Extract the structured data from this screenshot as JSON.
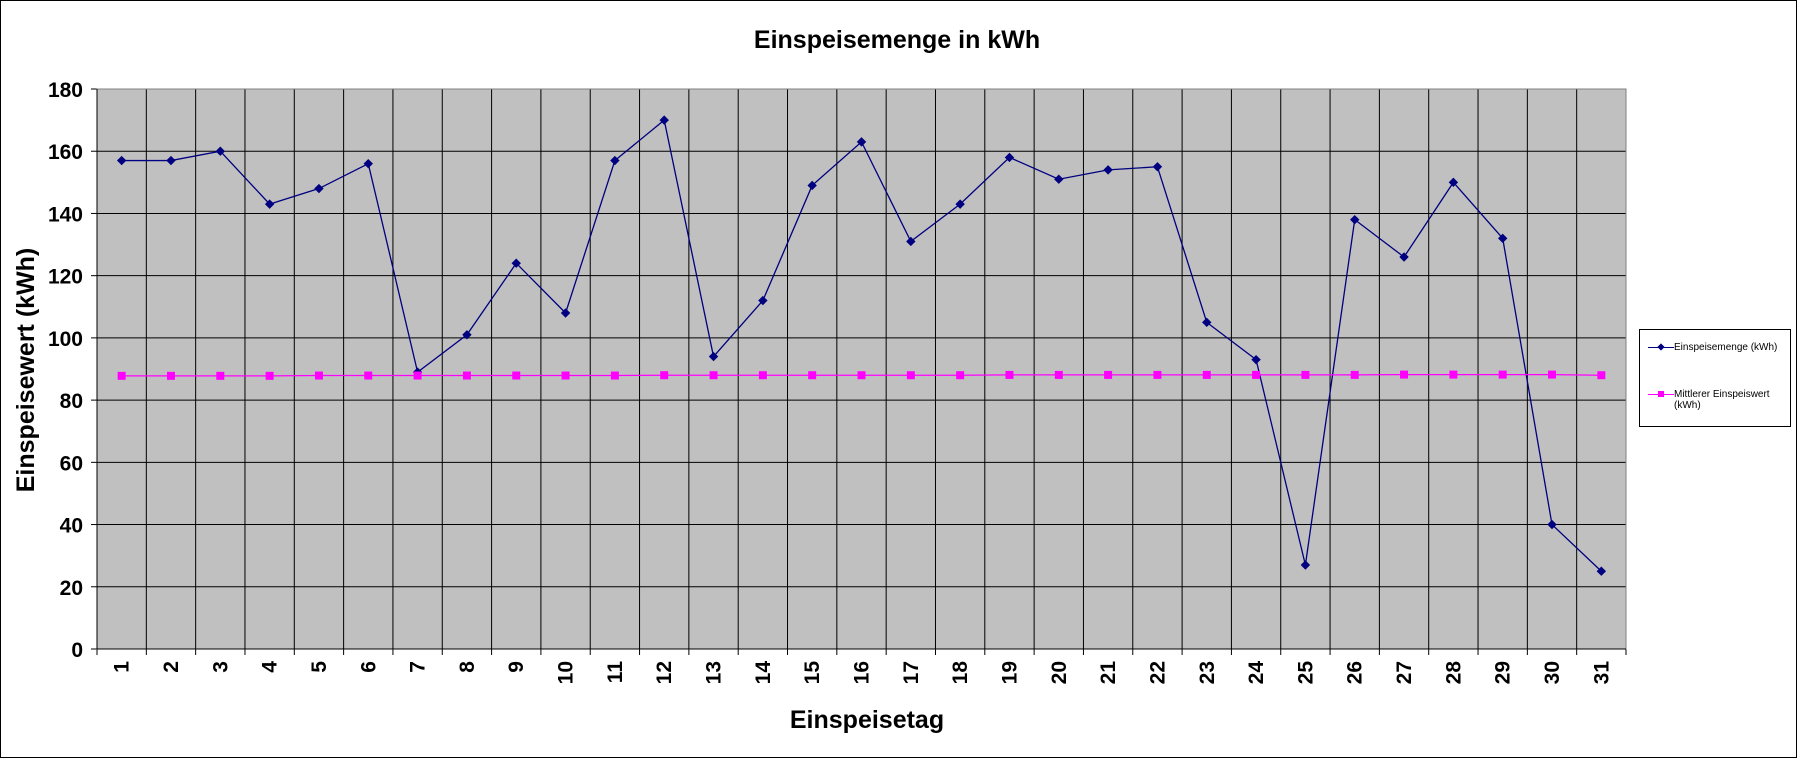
{
  "chart_data": {
    "type": "line",
    "title": "Einspeisemenge in kWh",
    "xlabel": "Einspeisetag",
    "ylabel": "Einspeisewert  (kWh)",
    "categories": [
      "1",
      "2",
      "3",
      "4",
      "5",
      "6",
      "7",
      "8",
      "9",
      "10",
      "11",
      "12",
      "13",
      "14",
      "15",
      "16",
      "17",
      "18",
      "19",
      "20",
      "21",
      "22",
      "23",
      "24",
      "25",
      "26",
      "27",
      "28",
      "29",
      "30",
      "31"
    ],
    "ylim": [
      0,
      180
    ],
    "yticks": [
      "0",
      "20",
      "40",
      "60",
      "80",
      "100",
      "120",
      "140",
      "160",
      "180"
    ],
    "grid": true,
    "legend_position": "right",
    "plot_background": "#c0c0c0",
    "series": [
      {
        "name": "Einspeisemenge (kWh)",
        "color": "#000080",
        "marker": "diamond",
        "values": [
          157,
          157,
          160,
          143,
          148,
          156,
          89,
          101,
          124,
          108,
          157,
          170,
          94,
          112,
          149,
          163,
          131,
          143,
          158,
          151,
          154,
          155,
          105,
          93,
          27,
          138,
          126,
          150,
          132,
          40,
          25
        ]
      },
      {
        "name": "Mittlerer Einspeiswert (kWh)",
        "color": "#ff00ff",
        "marker": "square",
        "values": [
          87.8,
          87.8,
          87.8,
          87.8,
          87.9,
          87.9,
          87.9,
          87.9,
          87.9,
          87.9,
          87.9,
          88.0,
          88.0,
          88.0,
          88.0,
          88.0,
          88.0,
          88.0,
          88.1,
          88.1,
          88.1,
          88.1,
          88.1,
          88.1,
          88.1,
          88.1,
          88.2,
          88.2,
          88.2,
          88.2,
          88.0
        ]
      }
    ]
  }
}
